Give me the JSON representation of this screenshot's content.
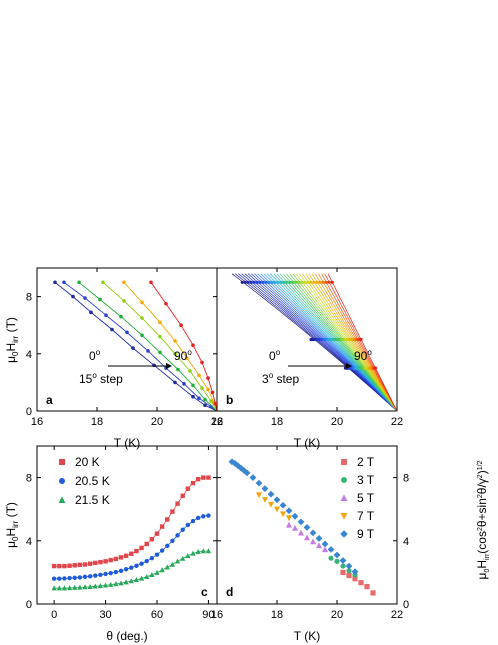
{
  "chart_data": [
    {
      "type": "line",
      "panel": "a",
      "xlabel": "T (K)",
      "ylabel": "μ0Hirr (T)",
      "xlim": [
        16,
        22
      ],
      "ylim": [
        0,
        10
      ],
      "xticks": [
        "16",
        "18",
        "20",
        "22"
      ],
      "yticks": [
        "0",
        "4",
        "8"
      ],
      "annotations": {
        "start": "0o",
        "end": "90o",
        "step": "15o step"
      },
      "series": [
        {
          "angle": 0,
          "color": "#1e2aa0",
          "points": [
            [
              16.6,
              9.0
            ],
            [
              17.2,
              8.0
            ],
            [
              17.8,
              6.9
            ],
            [
              18.5,
              5.7
            ],
            [
              19.2,
              4.4
            ],
            [
              19.9,
              3.2
            ],
            [
              20.6,
              2.0
            ],
            [
              21.2,
              1.0
            ],
            [
              21.6,
              0.4
            ],
            [
              22.0,
              0.0
            ]
          ]
        },
        {
          "angle": 15,
          "color": "#2b3fd0",
          "points": [
            [
              16.9,
              9.0
            ],
            [
              17.6,
              7.9
            ],
            [
              18.3,
              6.7
            ],
            [
              19.0,
              5.5
            ],
            [
              19.7,
              4.2
            ],
            [
              20.3,
              3.0
            ],
            [
              20.9,
              1.9
            ],
            [
              21.4,
              0.9
            ],
            [
              21.8,
              0.3
            ],
            [
              22.0,
              0.0
            ]
          ]
        },
        {
          "angle": 30,
          "color": "#1dae3a",
          "points": [
            [
              17.4,
              9.0
            ],
            [
              18.1,
              7.8
            ],
            [
              18.8,
              6.6
            ],
            [
              19.5,
              5.3
            ],
            [
              20.1,
              4.1
            ],
            [
              20.7,
              2.9
            ],
            [
              21.2,
              1.8
            ],
            [
              21.6,
              0.8
            ],
            [
              22.0,
              0.0
            ]
          ]
        },
        {
          "angle": 45,
          "color": "#8ad010",
          "points": [
            [
              18.2,
              9.0
            ],
            [
              18.9,
              7.7
            ],
            [
              19.5,
              6.5
            ],
            [
              20.1,
              5.2
            ],
            [
              20.6,
              4.0
            ],
            [
              21.1,
              2.8
            ],
            [
              21.5,
              1.6
            ],
            [
              21.8,
              0.7
            ],
            [
              22.0,
              0.0
            ]
          ]
        },
        {
          "angle": 60,
          "color": "#f5a700",
          "points": [
            [
              18.9,
              9.0
            ],
            [
              19.5,
              7.6
            ],
            [
              20.1,
              6.2
            ],
            [
              20.6,
              4.9
            ],
            [
              21.0,
              3.7
            ],
            [
              21.4,
              2.5
            ],
            [
              21.7,
              1.5
            ],
            [
              21.9,
              0.6
            ],
            [
              22.0,
              0.0
            ]
          ]
        },
        {
          "angle": 90,
          "color": "#e52020",
          "points": [
            [
              19.8,
              9.0
            ],
            [
              20.3,
              7.5
            ],
            [
              20.8,
              6.0
            ],
            [
              21.2,
              4.6
            ],
            [
              21.5,
              3.4
            ],
            [
              21.7,
              2.3
            ],
            [
              21.85,
              1.3
            ],
            [
              21.95,
              0.5
            ],
            [
              22.0,
              0.0
            ]
          ]
        }
      ]
    },
    {
      "type": "line",
      "panel": "b",
      "xlabel": "T (K)",
      "xlim": [
        16,
        22
      ],
      "ylim": [
        0,
        10
      ],
      "xticks": [
        "16",
        "18",
        "20",
        "22"
      ],
      "annotations": {
        "start": "0o",
        "end": "90o",
        "step": "3o step"
      },
      "fan": {
        "start_T_at_9T": 16.5,
        "end_T_at_9T": 19.7,
        "curves": 31,
        "converge_T": 22.0
      }
    },
    {
      "type": "scatter",
      "panel": "c",
      "xlabel": "θ (deg.)",
      "ylabel": "μ0Hirr (T)",
      "xlim": [
        -10,
        95
      ],
      "ylim": [
        0,
        10
      ],
      "xticks": [
        "0",
        "30",
        "60",
        "90"
      ],
      "yticks": [
        "0",
        "4",
        "8"
      ],
      "series": [
        {
          "name": "20 K",
          "color": "#e0474c",
          "marker": "square",
          "x": [
            0,
            3,
            6,
            9,
            12,
            15,
            18,
            21,
            24,
            27,
            30,
            33,
            36,
            39,
            42,
            45,
            48,
            51,
            54,
            57,
            60,
            63,
            66,
            69,
            72,
            75,
            78,
            81,
            84,
            87,
            90
          ],
          "y": [
            2.4,
            2.4,
            2.4,
            2.42,
            2.45,
            2.48,
            2.5,
            2.55,
            2.6,
            2.65,
            2.7,
            2.78,
            2.85,
            2.95,
            3.05,
            3.18,
            3.35,
            3.55,
            3.8,
            4.1,
            4.45,
            4.9,
            5.35,
            5.85,
            6.35,
            6.85,
            7.3,
            7.65,
            7.9,
            8.0,
            8.0
          ]
        },
        {
          "name": "20.5 K",
          "color": "#1f5bd9",
          "marker": "circle",
          "x": [
            0,
            3,
            6,
            9,
            12,
            15,
            18,
            21,
            24,
            27,
            30,
            33,
            36,
            39,
            42,
            45,
            48,
            51,
            54,
            57,
            60,
            63,
            66,
            69,
            72,
            75,
            78,
            81,
            84,
            87,
            90
          ],
          "y": [
            1.6,
            1.6,
            1.62,
            1.64,
            1.66,
            1.68,
            1.72,
            1.75,
            1.8,
            1.85,
            1.9,
            1.95,
            2.02,
            2.1,
            2.2,
            2.3,
            2.42,
            2.55,
            2.72,
            2.9,
            3.12,
            3.38,
            3.68,
            4.0,
            4.35,
            4.7,
            5.0,
            5.25,
            5.45,
            5.55,
            5.6
          ]
        },
        {
          "name": "21.5 K",
          "color": "#27a85a",
          "marker": "triangle",
          "x": [
            0,
            3,
            6,
            9,
            12,
            15,
            18,
            21,
            24,
            27,
            30,
            33,
            36,
            39,
            42,
            45,
            48,
            51,
            54,
            57,
            60,
            63,
            66,
            69,
            72,
            75,
            78,
            81,
            84,
            87,
            90
          ],
          "y": [
            1.0,
            1.0,
            1.0,
            1.02,
            1.03,
            1.05,
            1.07,
            1.09,
            1.12,
            1.15,
            1.18,
            1.22,
            1.27,
            1.32,
            1.38,
            1.45,
            1.53,
            1.62,
            1.72,
            1.85,
            1.98,
            2.15,
            2.32,
            2.5,
            2.7,
            2.88,
            3.05,
            3.2,
            3.3,
            3.35,
            3.35
          ]
        }
      ]
    },
    {
      "type": "scatter",
      "panel": "d",
      "xlabel": "T (K)",
      "ylabel": "μ0Hirr(cos2θ+sin2θ/γ2)1/2",
      "xlim": [
        16,
        22
      ],
      "ylim": [
        0,
        10
      ],
      "xticks": [
        "16",
        "18",
        "20",
        "22"
      ],
      "yticks": [
        "0",
        "4",
        "8"
      ],
      "series": [
        {
          "name": "2 T",
          "color": "#e86a6a",
          "marker": "square",
          "x": [
            20.2,
            20.4,
            20.6,
            20.8,
            21.0,
            21.2
          ],
          "y": [
            2.0,
            1.8,
            1.6,
            1.35,
            1.1,
            0.7
          ]
        },
        {
          "name": "3 T",
          "color": "#3bb27a",
          "marker": "circle",
          "x": [
            19.8,
            20.0,
            20.2,
            20.4,
            20.6
          ],
          "y": [
            2.9,
            2.7,
            2.4,
            2.1,
            1.85
          ]
        },
        {
          "name": "5 T",
          "color": "#c37ce0",
          "marker": "triangle",
          "x": [
            18.4,
            18.6,
            18.8,
            19.0,
            19.2,
            19.4,
            19.6
          ],
          "y": [
            5.0,
            4.8,
            4.5,
            4.2,
            3.95,
            3.7,
            3.45
          ]
        },
        {
          "name": "7 T",
          "color": "#f2a20a",
          "marker": "tri-down",
          "x": [
            17.4,
            17.6,
            17.8,
            18.0,
            18.2,
            18.4
          ],
          "y": [
            6.9,
            6.6,
            6.3,
            6.0,
            5.7,
            5.45
          ]
        },
        {
          "name": "9 T",
          "color": "#3a86d0",
          "marker": "diamond",
          "x": [
            16.5,
            16.6,
            16.7,
            16.8,
            16.9,
            17.0,
            17.2,
            17.4,
            17.6,
            17.8,
            18.0,
            18.2,
            18.4,
            18.6,
            18.8,
            19.0,
            19.2,
            19.4,
            19.6,
            19.8,
            20.0,
            20.2,
            20.4,
            20.6
          ],
          "y": [
            9.0,
            8.9,
            8.75,
            8.6,
            8.45,
            8.3,
            8.0,
            7.65,
            7.3,
            6.95,
            6.6,
            6.25,
            5.9,
            5.55,
            5.2,
            4.85,
            4.5,
            4.15,
            3.8,
            3.45,
            3.1,
            2.75,
            2.4,
            2.05
          ]
        }
      ]
    }
  ]
}
